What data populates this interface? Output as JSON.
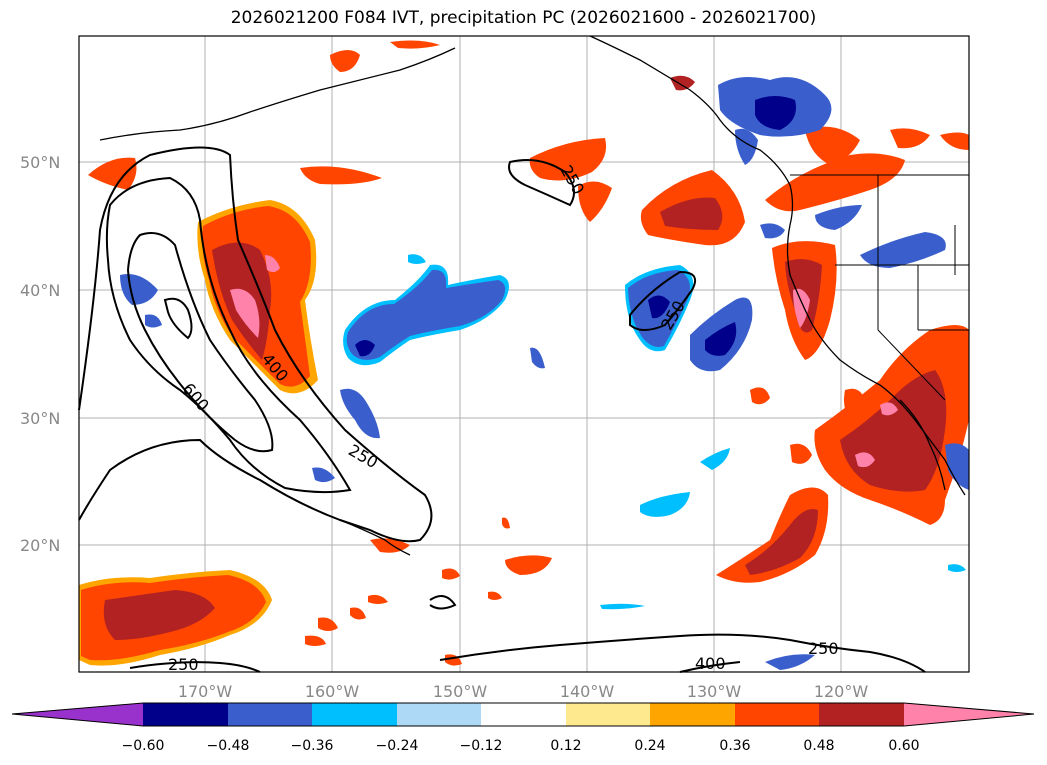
{
  "title": "2026021200 F084 IVT, precipitation PC (2026021600 - 2026021700)",
  "map": {
    "lat_labels": [
      "50°N",
      "40°N",
      "30°N",
      "20°N"
    ],
    "lon_labels": [
      "170°W",
      "160°W",
      "150°W",
      "140°W",
      "130°W",
      "120°W"
    ],
    "contour_labels": [
      "600",
      "400",
      "250",
      "250",
      "250",
      "250",
      "250",
      "400"
    ]
  },
  "colorbar": {
    "ticks": [
      "−0.60",
      "−0.48",
      "−0.36",
      "−0.24",
      "−0.12",
      "0.12",
      "0.24",
      "0.36",
      "0.48",
      "0.60"
    ],
    "colors": [
      "#9932cc",
      "#00008b",
      "#3a5fcd",
      "#00bfff",
      "#add8f6",
      "#ffffff",
      "#ffe98f",
      "#ffa500",
      "#ff4500",
      "#b22222",
      "#ff82ab"
    ]
  },
  "colors": {
    "grid": "#b0b0b0",
    "coast": "#000000",
    "contour": "#000000"
  }
}
